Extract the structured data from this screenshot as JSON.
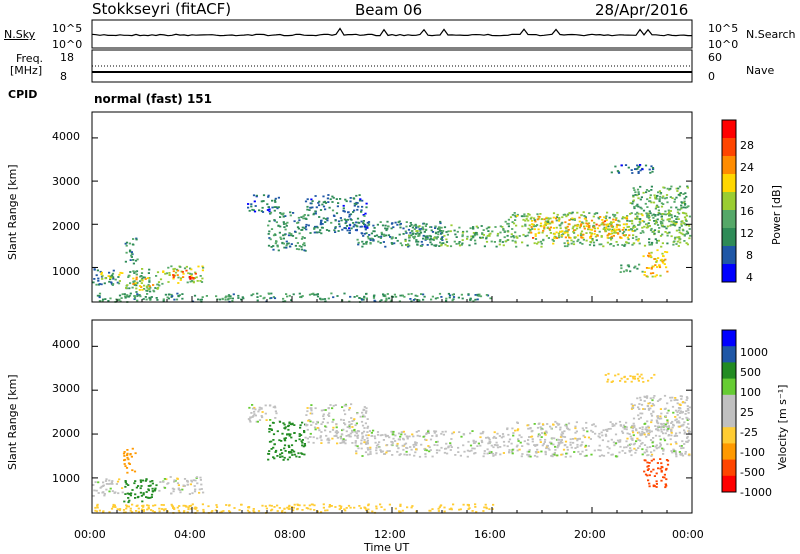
{
  "header": {
    "station": "Stokkseyri (fitACF)",
    "beam": "Beam 06",
    "date": "28/Apr/2016"
  },
  "noise_panel": {
    "left_label": "N.Sky",
    "right_label": "N.Search",
    "left_ticks": [
      "10^5",
      "10^0"
    ],
    "right_ticks": [
      "10^5",
      "10^0"
    ]
  },
  "freq_panel": {
    "left_label_line1": "Freq.",
    "left_label_line2": "[MHz]",
    "right_label": "Nave",
    "left_ticks": [
      "18",
      "8"
    ],
    "right_ticks": [
      "60",
      "0"
    ],
    "cpid_label": "CPID",
    "cpid_text": "normal (fast) 151"
  },
  "colors": {
    "power": [
      "#0000ff",
      "#1f57a6",
      "#2e8b57",
      "#55a868",
      "#9acd32",
      "#ffd700",
      "#ff8c00",
      "#ff4500",
      "#ff0000"
    ],
    "velocity": [
      "#ff0000",
      "#ff4500",
      "#ff9900",
      "#ffcc33",
      "#c0c0c0",
      "#c0c0c0",
      "#66cc33",
      "#228b22",
      "#1f57a6",
      "#0000ff"
    ]
  },
  "chart_data": [
    {
      "type": "heatmap",
      "name": "power",
      "ylabel": "Slant Range [km]",
      "ylim": [
        200,
        4600
      ],
      "yticks": [
        "1000",
        "2000",
        "3000",
        "4000"
      ],
      "xlim": [
        0,
        24
      ],
      "colorbar_label": "Power [dB]",
      "colorbar_ticks": [
        "28",
        "24",
        "20",
        "16",
        "12",
        "8",
        "4"
      ],
      "colorbar_range": [
        0,
        32
      ],
      "regions": [
        {
          "t0": 0.0,
          "t1": 1.1,
          "r0": 600,
          "r1": 1000,
          "value": 8
        },
        {
          "t0": 0.3,
          "t1": 1.3,
          "r0": 700,
          "r1": 900,
          "value": 16
        },
        {
          "t0": 1.3,
          "t1": 2.8,
          "r0": 450,
          "r1": 1000,
          "value": 12
        },
        {
          "t0": 1.6,
          "t1": 2.4,
          "r0": 500,
          "r1": 800,
          "value": 20
        },
        {
          "t0": 2.8,
          "t1": 4.5,
          "r0": 650,
          "r1": 1050,
          "value": 16
        },
        {
          "t0": 3.2,
          "t1": 4.2,
          "r0": 750,
          "r1": 950,
          "value": 26
        },
        {
          "t0": 1.3,
          "t1": 1.8,
          "r0": 1100,
          "r1": 1700,
          "value": 10
        },
        {
          "t0": 6.2,
          "t1": 7.5,
          "r0": 2300,
          "r1": 2700,
          "value": 6
        },
        {
          "t0": 7.0,
          "t1": 8.5,
          "r0": 1400,
          "r1": 2300,
          "value": 10
        },
        {
          "t0": 8.5,
          "t1": 11.0,
          "r0": 1800,
          "r1": 2700,
          "value": 7
        },
        {
          "t0": 10.5,
          "t1": 14.0,
          "r0": 1500,
          "r1": 2100,
          "value": 9
        },
        {
          "t0": 12.5,
          "t1": 16.5,
          "r0": 1500,
          "r1": 2000,
          "value": 12
        },
        {
          "t0": 16.5,
          "t1": 23.9,
          "r0": 1500,
          "r1": 2300,
          "value": 14
        },
        {
          "t0": 17.5,
          "t1": 21.5,
          "r0": 1700,
          "r1": 2200,
          "value": 21
        },
        {
          "t0": 21.5,
          "t1": 23.9,
          "r0": 2000,
          "r1": 2900,
          "value": 12
        },
        {
          "t0": 20.5,
          "t1": 22.5,
          "r0": 3200,
          "r1": 3400,
          "value": 6
        },
        {
          "t0": 21.0,
          "t1": 22.0,
          "r0": 900,
          "r1": 1100,
          "value": 10
        },
        {
          "t0": 22.0,
          "t1": 23.0,
          "r0": 800,
          "r1": 1450,
          "value": 20
        },
        {
          "t0": 0.0,
          "t1": 16.0,
          "r0": 220,
          "r1": 420,
          "value": 10
        }
      ]
    },
    {
      "type": "heatmap",
      "name": "velocity",
      "ylabel": "Slant Range [km]",
      "xlabel": "Time UT",
      "ylim": [
        200,
        4600
      ],
      "yticks": [
        "1000",
        "2000",
        "3000",
        "4000"
      ],
      "xlim": [
        0,
        24
      ],
      "xticks": [
        "00:00",
        "04:00",
        "08:00",
        "12:00",
        "16:00",
        "20:00",
        "00:00"
      ],
      "colorbar_label": "Velocity [m s⁻¹]",
      "colorbar_ticks": [
        "1000",
        "500",
        "100",
        "25",
        "-25",
        "-100",
        "-500",
        "-1000"
      ],
      "regions": [
        {
          "t0": 0.0,
          "t1": 1.2,
          "r0": 600,
          "r1": 1000,
          "value": 0
        },
        {
          "t0": 1.2,
          "t1": 2.6,
          "r0": 450,
          "r1": 1000,
          "value": 150
        },
        {
          "t0": 2.6,
          "t1": 4.5,
          "r0": 650,
          "r1": 1050,
          "value": 0
        },
        {
          "t0": 1.2,
          "t1": 1.7,
          "r0": 1100,
          "r1": 1700,
          "value": -150
        },
        {
          "t0": 6.2,
          "t1": 7.5,
          "r0": 2300,
          "r1": 2700,
          "value": 0
        },
        {
          "t0": 7.0,
          "t1": 8.5,
          "r0": 1400,
          "r1": 2300,
          "value": 300
        },
        {
          "t0": 8.5,
          "t1": 11.0,
          "r0": 1800,
          "r1": 2700,
          "value": 0
        },
        {
          "t0": 10.5,
          "t1": 16.5,
          "r0": 1500,
          "r1": 2100,
          "value": 0
        },
        {
          "t0": 16.5,
          "t1": 23.9,
          "r0": 1500,
          "r1": 2300,
          "value": 0
        },
        {
          "t0": 21.5,
          "t1": 23.9,
          "r0": 2000,
          "r1": 2900,
          "value": 0
        },
        {
          "t0": 20.5,
          "t1": 22.5,
          "r0": 3200,
          "r1": 3400,
          "value": -60
        },
        {
          "t0": 22.0,
          "t1": 23.0,
          "r0": 800,
          "r1": 1450,
          "value": -700
        },
        {
          "t0": 0.0,
          "t1": 16.0,
          "r0": 220,
          "r1": 420,
          "value": -60
        }
      ]
    }
  ]
}
